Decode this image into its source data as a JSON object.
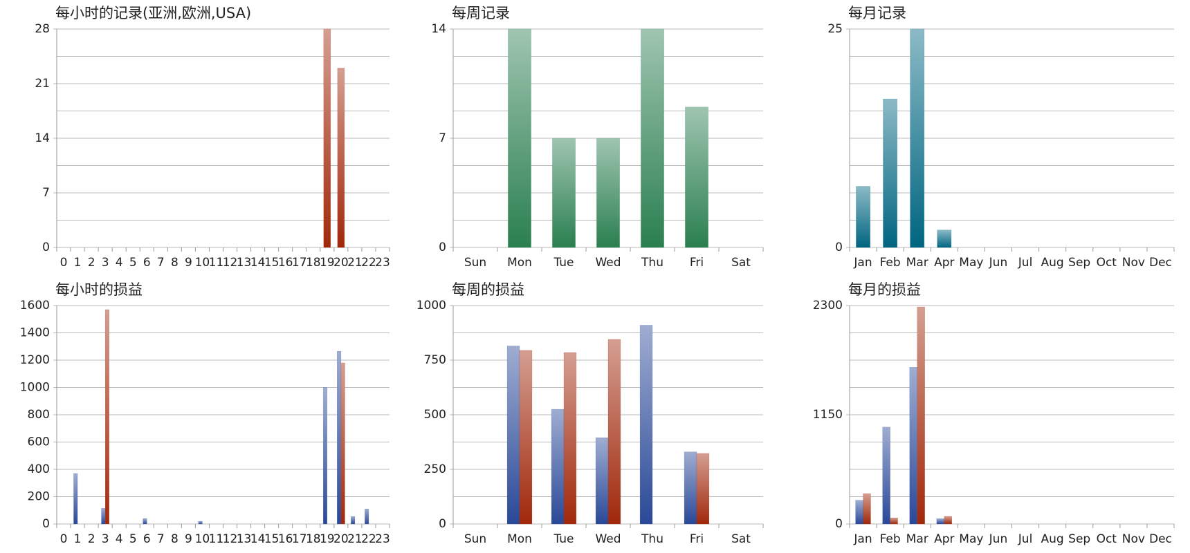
{
  "chart_data": [
    {
      "type": "bar",
      "title": "每小时的记录(亚洲,欧洲,USA)",
      "categories": [
        "0",
        "1",
        "2",
        "3",
        "4",
        "5",
        "6",
        "7",
        "8",
        "9",
        "10",
        "11",
        "12",
        "13",
        "14",
        "15",
        "16",
        "17",
        "18",
        "19",
        "20",
        "21",
        "22",
        "23"
      ],
      "series": [
        {
          "color": "#a0280a",
          "values": [
            0,
            0,
            0,
            0,
            0,
            0,
            0,
            0,
            0,
            0,
            0,
            0,
            0,
            0,
            0,
            0,
            0,
            0,
            0,
            28,
            23,
            0,
            0,
            0
          ]
        }
      ],
      "ylim": [
        0,
        28
      ],
      "yticks": [
        0,
        7,
        14,
        21,
        28
      ],
      "grid": true
    },
    {
      "type": "bar",
      "title": "每周记录",
      "categories": [
        "Sun",
        "Mon",
        "Tue",
        "Wed",
        "Thu",
        "Fri",
        "Sat"
      ],
      "series": [
        {
          "color": "#2a7f50",
          "values": [
            0,
            14,
            7,
            7,
            14,
            9,
            0
          ]
        }
      ],
      "ylim": [
        0,
        14
      ],
      "yticks": [
        0,
        7,
        14
      ],
      "grid": true
    },
    {
      "type": "bar",
      "title": "每月记录",
      "categories": [
        "Jan",
        "Feb",
        "Mar",
        "Apr",
        "May",
        "Jun",
        "Jul",
        "Aug",
        "Sep",
        "Oct",
        "Nov",
        "Dec"
      ],
      "series": [
        {
          "color": "#006580",
          "values": [
            7,
            17,
            25,
            2,
            0,
            0,
            0,
            0,
            0,
            0,
            0,
            0
          ]
        }
      ],
      "ylim": [
        0,
        25
      ],
      "yticks": [
        0,
        25
      ],
      "grid": true
    },
    {
      "type": "bar",
      "title": "每小时的损益",
      "categories": [
        "0",
        "1",
        "2",
        "3",
        "4",
        "5",
        "6",
        "7",
        "8",
        "9",
        "10",
        "11",
        "12",
        "13",
        "14",
        "15",
        "16",
        "17",
        "18",
        "19",
        "20",
        "21",
        "22",
        "23"
      ],
      "series": [
        {
          "color": "#2a4898",
          "values": [
            0,
            370,
            0,
            115,
            0,
            0,
            40,
            0,
            0,
            0,
            20,
            0,
            0,
            0,
            0,
            0,
            0,
            0,
            0,
            1000,
            1265,
            55,
            110,
            0
          ]
        },
        {
          "color": "#a0280a",
          "values": [
            0,
            0,
            0,
            1570,
            0,
            0,
            0,
            0,
            0,
            0,
            0,
            0,
            0,
            0,
            0,
            0,
            0,
            0,
            0,
            0,
            1180,
            0,
            0,
            0
          ]
        }
      ],
      "ylim": [
        0,
        1600
      ],
      "yticks": [
        0,
        200,
        400,
        600,
        800,
        1000,
        1200,
        1400,
        1600
      ],
      "grid": true
    },
    {
      "type": "bar",
      "title": "每周的损益",
      "categories": [
        "Sun",
        "Mon",
        "Tue",
        "Wed",
        "Thu",
        "Fri",
        "Sat"
      ],
      "series": [
        {
          "color": "#2a4898",
          "values": [
            0,
            815,
            525,
            395,
            910,
            330,
            0
          ]
        },
        {
          "color": "#a0280a",
          "values": [
            0,
            795,
            785,
            845,
            0,
            323,
            0
          ]
        }
      ],
      "ylim": [
        0,
        1000
      ],
      "yticks": [
        0,
        250,
        500,
        750,
        1000
      ],
      "grid": true
    },
    {
      "type": "bar",
      "title": "每月的损益",
      "categories": [
        "Jan",
        "Feb",
        "Mar",
        "Apr",
        "May",
        "Jun",
        "Jul",
        "Aug",
        "Sep",
        "Oct",
        "Nov",
        "Dec"
      ],
      "series": [
        {
          "color": "#2a4898",
          "values": [
            250,
            1020,
            1650,
            56,
            0,
            0,
            0,
            0,
            0,
            0,
            0,
            0
          ]
        },
        {
          "color": "#a0280a",
          "values": [
            320,
            64,
            2285,
            80,
            0,
            0,
            0,
            0,
            0,
            0,
            0,
            0
          ]
        }
      ],
      "ylim": [
        0,
        2300
      ],
      "yticks": [
        0,
        1150,
        2300
      ],
      "grid": true
    }
  ]
}
